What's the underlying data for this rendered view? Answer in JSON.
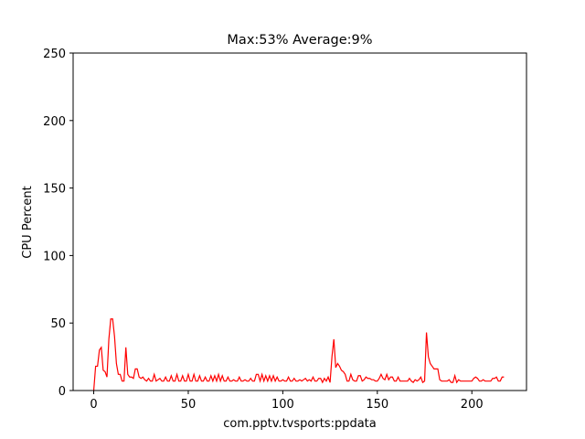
{
  "chart_data": {
    "type": "line",
    "title": "Max:53% Average:9%",
    "x_label": "com.pptv.tvsports:ppdata",
    "y_label": "CPU Percent",
    "x": [
      0,
      1,
      2,
      3,
      4,
      5,
      6,
      7,
      8,
      9,
      10,
      11,
      12,
      13,
      14,
      15,
      16,
      17,
      18,
      19,
      20,
      21,
      22,
      23,
      24,
      25,
      26,
      27,
      28,
      29,
      30,
      31,
      32,
      33,
      34,
      35,
      36,
      37,
      38,
      39,
      40,
      41,
      42,
      43,
      44,
      45,
      46,
      47,
      48,
      49,
      50,
      51,
      52,
      53,
      54,
      55,
      56,
      57,
      58,
      59,
      60,
      61,
      62,
      63,
      64,
      65,
      66,
      67,
      68,
      69,
      70,
      71,
      72,
      73,
      74,
      75,
      76,
      77,
      78,
      79,
      80,
      81,
      82,
      83,
      84,
      85,
      86,
      87,
      88,
      89,
      90,
      91,
      92,
      93,
      94,
      95,
      96,
      97,
      98,
      99,
      100,
      101,
      102,
      103,
      104,
      105,
      106,
      107,
      108,
      109,
      110,
      111,
      112,
      113,
      114,
      115,
      116,
      117,
      118,
      119,
      120,
      121,
      122,
      123,
      124,
      125,
      126,
      127,
      128,
      129,
      130,
      131,
      132,
      133,
      134,
      135,
      136,
      137,
      138,
      139,
      140,
      141,
      142,
      143,
      144,
      145,
      146,
      147,
      148,
      149,
      150,
      151,
      152,
      153,
      154,
      155,
      156,
      157,
      158,
      159,
      160,
      161,
      162,
      163,
      164,
      165,
      166,
      167,
      168,
      169,
      170,
      171,
      172,
      173,
      174,
      175,
      176,
      177,
      178,
      179,
      180,
      181,
      182,
      183,
      184,
      185,
      186,
      187,
      188,
      189,
      190,
      191,
      192,
      193,
      194,
      195,
      196,
      197,
      198,
      199,
      200,
      201,
      202,
      203,
      204,
      205,
      206,
      207,
      208,
      209,
      210,
      211,
      212,
      213,
      214,
      215,
      216,
      217
    ],
    "series": [
      {
        "color": "#ff0000",
        "values": [
          0,
          18,
          18,
          30,
          32,
          15,
          14,
          10,
          38,
          53,
          53,
          40,
          20,
          12,
          12,
          7,
          7,
          32,
          12,
          10,
          10,
          9,
          16,
          16,
          10,
          9,
          10,
          8,
          7,
          9,
          7,
          7,
          12,
          7,
          8,
          9,
          7,
          7,
          10,
          7,
          7,
          11,
          7,
          7,
          12,
          7,
          7,
          11,
          7,
          7,
          12,
          7,
          7,
          12,
          7,
          7,
          11,
          7,
          7,
          10,
          7,
          7,
          11,
          7,
          11,
          7,
          12,
          7,
          11,
          7,
          7,
          10,
          7,
          7,
          8,
          7,
          7,
          10,
          7,
          7,
          8,
          7,
          7,
          9,
          7,
          7,
          12,
          12,
          7,
          12,
          7,
          11,
          7,
          11,
          7,
          11,
          7,
          10,
          7,
          7,
          8,
          7,
          7,
          10,
          7,
          7,
          9,
          7,
          7,
          8,
          7,
          8,
          9,
          7,
          8,
          7,
          10,
          7,
          7,
          9,
          9,
          6,
          9,
          7,
          10,
          6,
          25,
          38,
          17,
          20,
          18,
          15,
          14,
          12,
          7,
          7,
          12,
          8,
          7,
          7,
          11,
          11,
          7,
          8,
          10,
          9,
          9,
          8,
          8,
          7,
          7,
          9,
          12,
          9,
          8,
          12,
          8,
          10,
          10,
          7,
          7,
          10,
          7,
          7,
          7,
          7,
          7,
          9,
          7,
          6,
          8,
          7,
          8,
          10,
          6,
          7,
          43,
          25,
          20,
          18,
          16,
          16,
          16,
          8,
          7,
          7,
          7,
          7,
          8,
          6,
          6,
          11,
          6,
          8,
          7,
          7,
          7,
          7,
          7,
          7,
          7,
          9,
          10,
          9,
          7,
          7,
          8,
          7,
          7,
          7,
          7,
          9,
          9,
          10,
          7,
          7,
          10,
          10
        ]
      }
    ],
    "xlim": [
      -10.9,
      228.9
    ],
    "ylim": [
      0,
      250
    ],
    "xticks": [
      0,
      50,
      100,
      150,
      200
    ],
    "yticks": [
      0,
      50,
      100,
      150,
      200,
      250
    ]
  }
}
